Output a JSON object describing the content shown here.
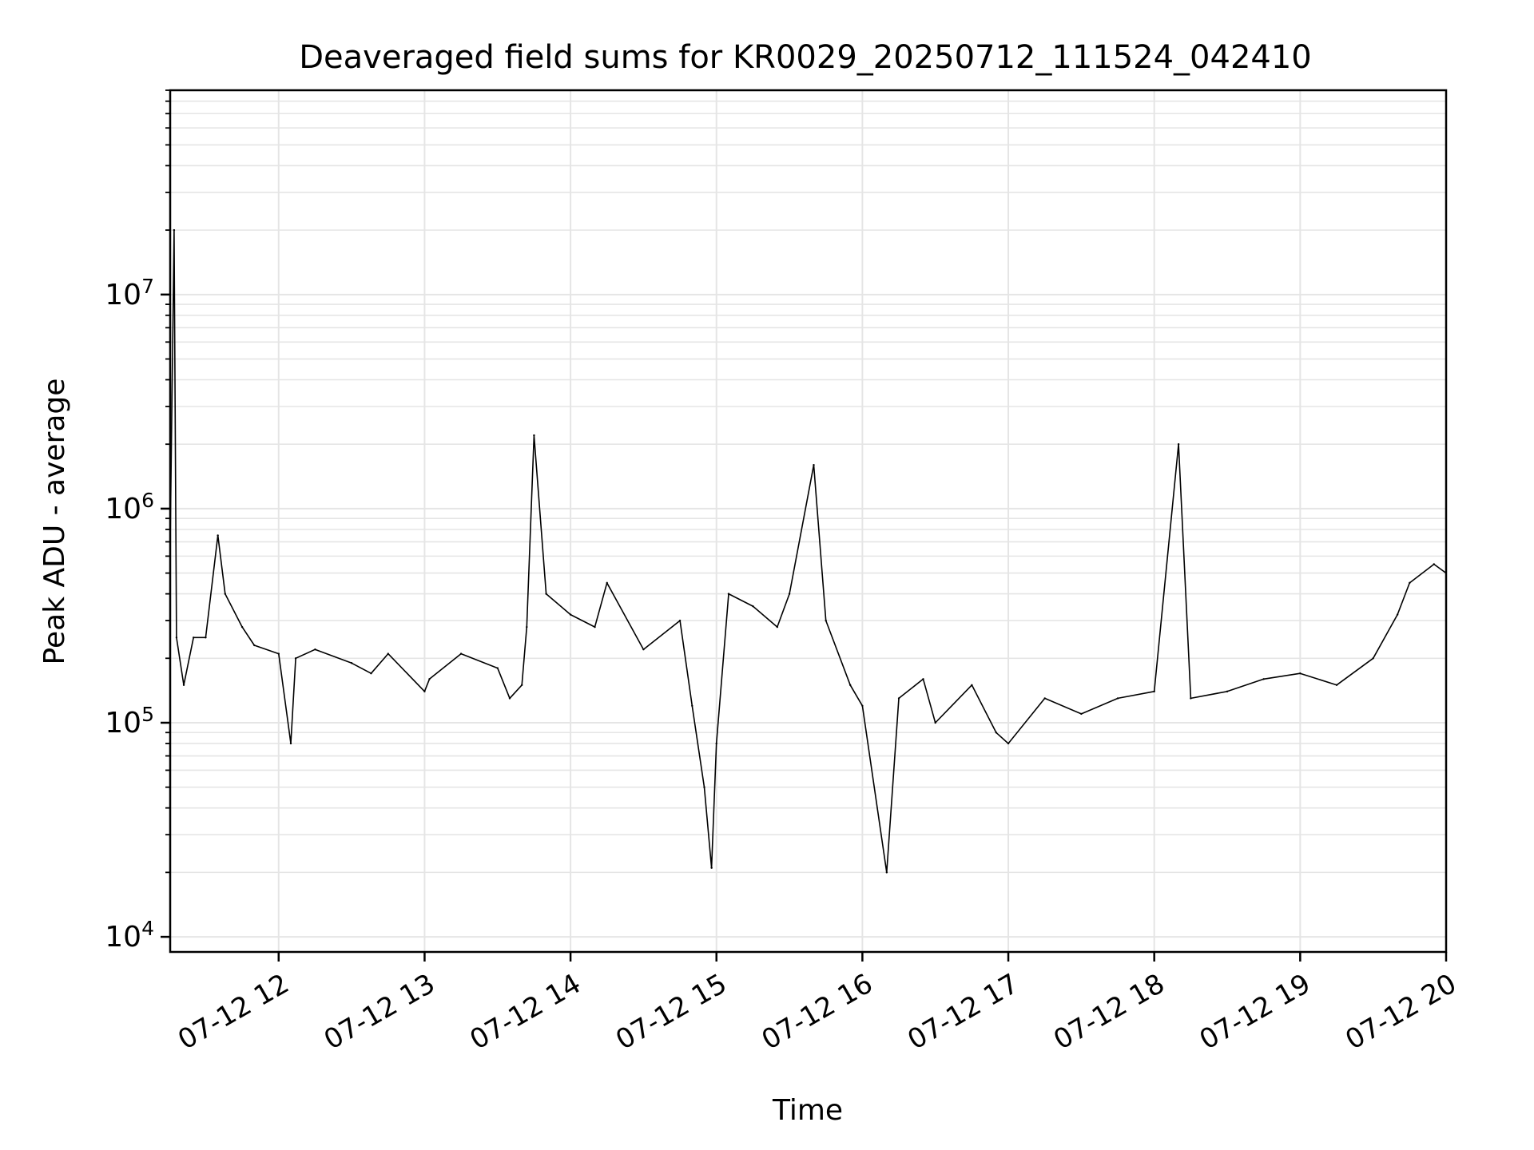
{
  "chart_data": {
    "type": "line",
    "title": "Deaveraged field sums for KR0029_20250712_111524_042410",
    "xlabel": "Time",
    "ylabel": "Peak ADU - average",
    "x_scale": "time",
    "y_scale": "log",
    "xlim": [
      "2025-07-12 11:15:24",
      "2025-07-12 20:00:00"
    ],
    "ylim": [
      8500,
      90000000
    ],
    "x_ticks": [
      {
        "t": "2025-07-12 12:00",
        "label": "07-12 12"
      },
      {
        "t": "2025-07-12 13:00",
        "label": "07-12 13"
      },
      {
        "t": "2025-07-12 14:00",
        "label": "07-12 14"
      },
      {
        "t": "2025-07-12 15:00",
        "label": "07-12 15"
      },
      {
        "t": "2025-07-12 16:00",
        "label": "07-12 16"
      },
      {
        "t": "2025-07-12 17:00",
        "label": "07-12 17"
      },
      {
        "t": "2025-07-12 18:00",
        "label": "07-12 18"
      },
      {
        "t": "2025-07-12 19:00",
        "label": "07-12 19"
      },
      {
        "t": "2025-07-12 20:00",
        "label": "07-12 20"
      }
    ],
    "y_ticks": [
      {
        "value": 10000,
        "base": "10",
        "exp": "4"
      },
      {
        "value": 100000,
        "base": "10",
        "exp": "5"
      },
      {
        "value": 1000000,
        "base": "10",
        "exp": "6"
      },
      {
        "value": 10000000,
        "base": "10",
        "exp": "7"
      }
    ],
    "grid": true,
    "grid_minor": true,
    "line_color": "#000000",
    "grid_color": "#e5e5e5",
    "series": [
      {
        "x": [
          "2025-07-12 11:15",
          "2025-07-12 11:17",
          "2025-07-12 11:18",
          "2025-07-12 11:21",
          "2025-07-12 11:25",
          "2025-07-12 11:30",
          "2025-07-12 11:35",
          "2025-07-12 11:38",
          "2025-07-12 11:45",
          "2025-07-12 11:50",
          "2025-07-12 12:00",
          "2025-07-12 12:05",
          "2025-07-12 12:07",
          "2025-07-12 12:15",
          "2025-07-12 12:30",
          "2025-07-12 12:38",
          "2025-07-12 12:45",
          "2025-07-12 13:00",
          "2025-07-12 13:02",
          "2025-07-12 13:15",
          "2025-07-12 13:30",
          "2025-07-12 13:35",
          "2025-07-12 13:40",
          "2025-07-12 13:42",
          "2025-07-12 13:45",
          "2025-07-12 13:50",
          "2025-07-12 14:00",
          "2025-07-12 14:10",
          "2025-07-12 14:15",
          "2025-07-12 14:30",
          "2025-07-12 14:45",
          "2025-07-12 14:50",
          "2025-07-12 14:55",
          "2025-07-12 14:58",
          "2025-07-12 15:00",
          "2025-07-12 15:05",
          "2025-07-12 15:15",
          "2025-07-12 15:25",
          "2025-07-12 15:30",
          "2025-07-12 15:40",
          "2025-07-12 15:45",
          "2025-07-12 15:55",
          "2025-07-12 16:00",
          "2025-07-12 16:10",
          "2025-07-12 16:15",
          "2025-07-12 16:25",
          "2025-07-12 16:30",
          "2025-07-12 16:45",
          "2025-07-12 16:55",
          "2025-07-12 17:00",
          "2025-07-12 17:15",
          "2025-07-12 17:30",
          "2025-07-12 17:45",
          "2025-07-12 18:00",
          "2025-07-12 18:10",
          "2025-07-12 18:15",
          "2025-07-12 18:30",
          "2025-07-12 18:45",
          "2025-07-12 19:00",
          "2025-07-12 19:15",
          "2025-07-12 19:30",
          "2025-07-12 19:40",
          "2025-07-12 19:45",
          "2025-07-12 19:55",
          "2025-07-12 20:00"
        ],
        "y": [
          300000,
          20000000,
          250000,
          150000,
          250000,
          250000,
          750000,
          400000,
          280000,
          230000,
          210000,
          80000,
          200000,
          220000,
          190000,
          170000,
          210000,
          140000,
          160000,
          210000,
          180000,
          130000,
          150000,
          280000,
          2200000,
          400000,
          320000,
          280000,
          450000,
          220000,
          300000,
          120000,
          50000,
          21000,
          80000,
          400000,
          350000,
          280000,
          400000,
          1600000,
          300000,
          150000,
          120000,
          20000,
          130000,
          160000,
          100000,
          150000,
          90000,
          80000,
          130000,
          110000,
          130000,
          140000,
          2000000,
          130000,
          140000,
          160000,
          170000,
          150000,
          200000,
          320000,
          450000,
          550000,
          500000
        ]
      }
    ]
  }
}
